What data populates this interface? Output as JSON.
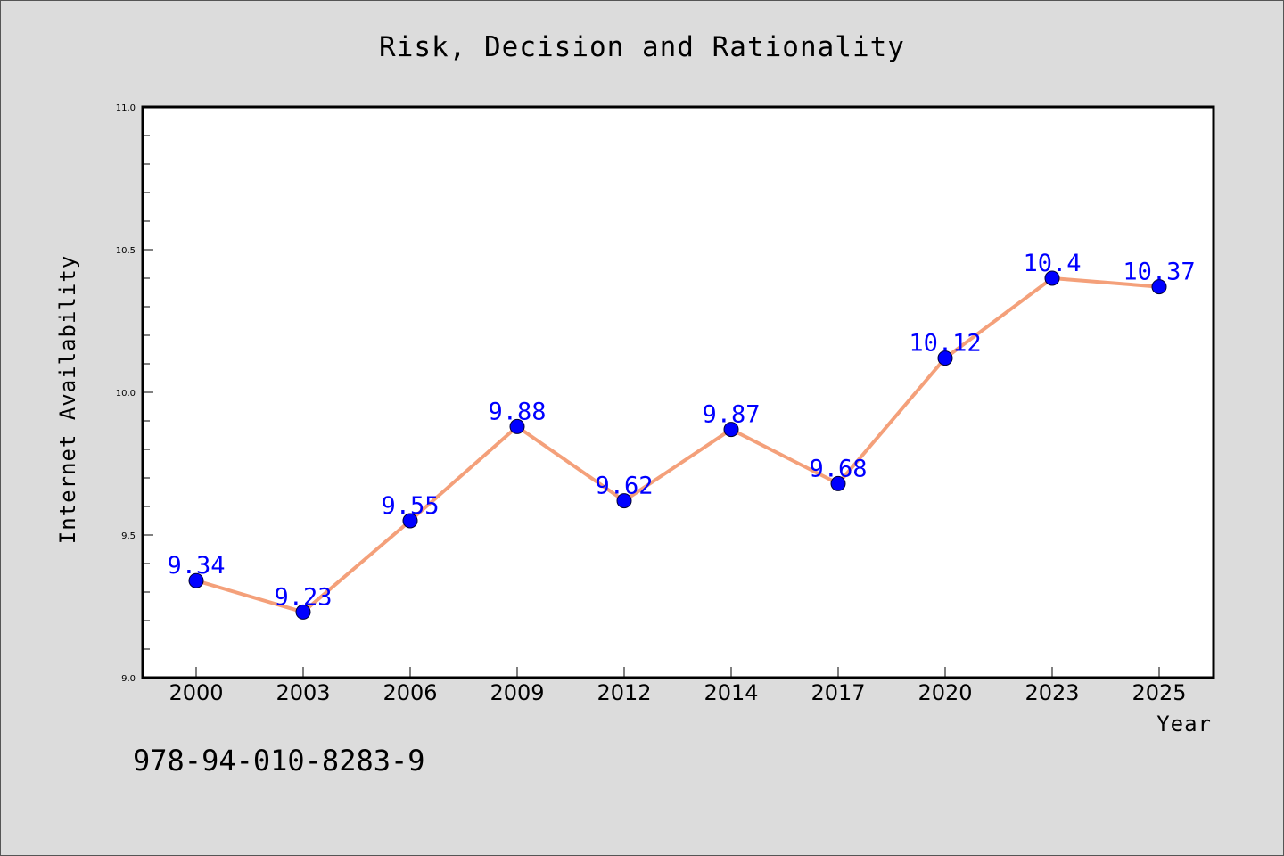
{
  "chart_data": {
    "type": "line",
    "title": "Risk, Decision and Rationality",
    "xlabel": "Year",
    "ylabel": "Internet Availability",
    "categories": [
      "2000",
      "2003",
      "2006",
      "2009",
      "2012",
      "2014",
      "2017",
      "2020",
      "2023",
      "2025"
    ],
    "series": [
      {
        "values": [
          9.34,
          9.23,
          9.55,
          9.88,
          9.62,
          9.87,
          9.68,
          10.12,
          10.4,
          10.37
        ],
        "labels": [
          "9.34",
          "9.23",
          "9.55",
          "9.88",
          "9.62",
          "9.87",
          "9.68",
          "10.12",
          "10.4",
          "10.37"
        ]
      }
    ],
    "ylim": [
      9.0,
      11.0
    ],
    "yticks": [
      "9.0",
      "9.5",
      "10.0",
      "10.5",
      "11.0"
    ],
    "grid": false,
    "colors": {
      "line": "#f4a07a",
      "marker": "#0000ff",
      "label": "#0000ff",
      "background": "#dcdcdc",
      "plot_background": "#ffffff"
    }
  },
  "footer": {
    "isbn": "978-94-010-8283-9"
  }
}
